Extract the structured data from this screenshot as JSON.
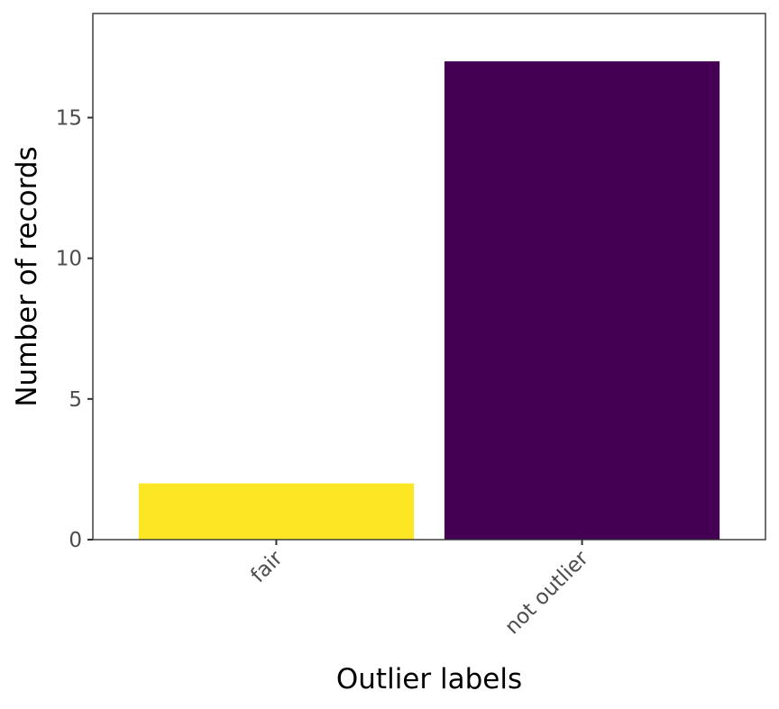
{
  "chart_data": {
    "type": "bar",
    "title": "",
    "xlabel": "Outlier labels",
    "ylabel": "Number of records",
    "categories": [
      "fair",
      "not outlier"
    ],
    "values": [
      2,
      17
    ],
    "colors": [
      "#FDE725",
      "#440154"
    ],
    "ylim": [
      0,
      18.7
    ],
    "yticks": [
      0,
      5,
      10,
      15
    ],
    "ytick_labels": [
      "0",
      "5",
      "10",
      "15"
    ],
    "xtick_rotation_deg": -45,
    "grid": false,
    "legend": "none"
  }
}
